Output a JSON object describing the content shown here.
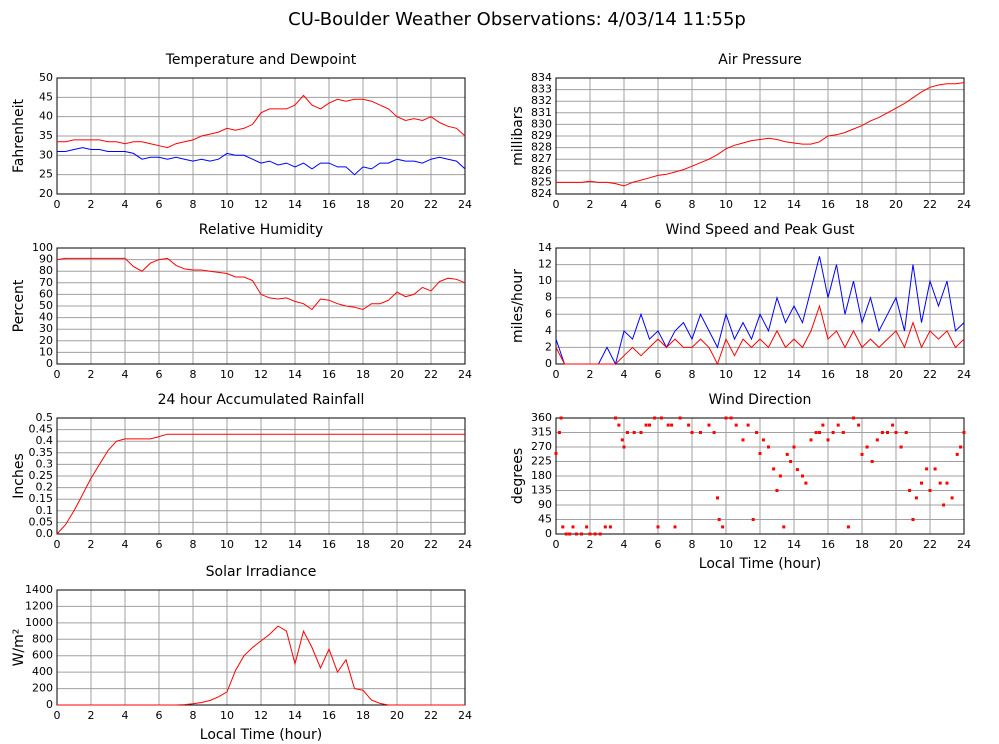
{
  "title": "CU-Boulder Weather Observations: 4/03/14 11:55p",
  "chart_data": [
    {
      "type": "line",
      "title": "Temperature and Dewpoint",
      "ylabel": "Fahrenheit",
      "x": [
        0,
        0.5,
        1,
        1.5,
        2,
        2.5,
        3,
        3.5,
        4,
        4.5,
        5,
        5.5,
        6,
        6.5,
        7,
        7.5,
        8,
        8.5,
        9,
        9.5,
        10,
        10.5,
        11,
        11.5,
        12,
        12.5,
        13,
        13.5,
        14,
        14.5,
        15,
        15.5,
        16,
        16.5,
        17,
        17.5,
        18,
        18.5,
        19,
        19.5,
        20,
        20.5,
        21,
        21.5,
        22,
        22.5,
        23,
        23.5,
        24
      ],
      "series": [
        {
          "color": "#ff0000",
          "values": [
            33.5,
            33.5,
            34,
            34,
            34,
            34,
            33.5,
            33.5,
            33,
            33.5,
            33.5,
            33,
            32.5,
            32,
            33,
            33.5,
            34,
            35,
            35.5,
            36,
            37,
            36.5,
            37,
            38,
            41,
            42,
            42,
            42,
            43,
            45.5,
            43,
            42,
            43.5,
            44.5,
            44,
            44.5,
            44.5,
            44,
            43,
            42,
            40,
            39,
            39.5,
            39,
            40,
            38.5,
            37.5,
            37,
            35
          ]
        },
        {
          "color": "#0000ff",
          "values": [
            31,
            31,
            31.5,
            32,
            31.5,
            31.5,
            31,
            31,
            31,
            30.5,
            29,
            29.5,
            29.5,
            29,
            29.5,
            29,
            28.5,
            29,
            28.5,
            29,
            30.5,
            30,
            30,
            29,
            28,
            28.5,
            27.5,
            28,
            27,
            28,
            26.5,
            28,
            28,
            27,
            27,
            25,
            27,
            26.5,
            28,
            28,
            29,
            28.5,
            28.5,
            28,
            29,
            29.5,
            29,
            28.5,
            26.5
          ]
        }
      ],
      "xlim": [
        0,
        24
      ],
      "xticks": [
        0,
        2,
        4,
        6,
        8,
        10,
        12,
        14,
        16,
        18,
        20,
        22,
        24
      ],
      "ylim": [
        20,
        50
      ],
      "yticks": [
        20,
        25,
        30,
        35,
        40,
        45,
        50
      ],
      "grid": true
    },
    {
      "type": "line",
      "title": "Air Pressure",
      "ylabel": "millibars",
      "x": [
        0,
        0.5,
        1,
        1.5,
        2,
        2.5,
        3,
        3.5,
        4,
        4.5,
        5,
        5.5,
        6,
        6.5,
        7,
        7.5,
        8,
        8.5,
        9,
        9.5,
        10,
        10.5,
        11,
        11.5,
        12,
        12.5,
        13,
        13.5,
        14,
        14.5,
        15,
        15.5,
        16,
        16.5,
        17,
        17.5,
        18,
        18.5,
        19,
        19.5,
        20,
        20.5,
        21,
        21.5,
        22,
        22.5,
        23,
        23.5,
        24
      ],
      "series": [
        {
          "color": "#ff0000",
          "values": [
            825,
            825,
            825,
            825,
            825.1,
            825,
            825,
            824.9,
            824.7,
            825,
            825.2,
            825.4,
            825.6,
            825.7,
            825.9,
            826.1,
            826.4,
            826.7,
            827,
            827.4,
            827.9,
            828.2,
            828.4,
            828.6,
            828.7,
            828.8,
            828.7,
            828.5,
            828.4,
            828.3,
            828.3,
            828.5,
            829,
            829.1,
            829.3,
            829.6,
            829.9,
            830.3,
            830.6,
            831,
            831.4,
            831.8,
            832.3,
            832.8,
            833.2,
            833.4,
            833.5,
            833.5,
            833.6
          ]
        }
      ],
      "xlim": [
        0,
        24
      ],
      "xticks": [
        0,
        2,
        4,
        6,
        8,
        10,
        12,
        14,
        16,
        18,
        20,
        22,
        24
      ],
      "ylim": [
        824,
        834
      ],
      "yticks": [
        824,
        825,
        826,
        827,
        828,
        829,
        830,
        831,
        832,
        833,
        834
      ],
      "grid": true
    },
    {
      "type": "line",
      "title": "Relative Humidity",
      "ylabel": "Percent",
      "x": [
        0,
        0.5,
        1,
        1.5,
        2,
        2.5,
        3,
        3.5,
        4,
        4.5,
        5,
        5.5,
        6,
        6.5,
        7,
        7.5,
        8,
        8.5,
        9,
        9.5,
        10,
        10.5,
        11,
        11.5,
        12,
        12.5,
        13,
        13.5,
        14,
        14.5,
        15,
        15.5,
        16,
        16.5,
        17,
        17.5,
        18,
        18.5,
        19,
        19.5,
        20,
        20.5,
        21,
        21.5,
        22,
        22.5,
        23,
        23.5,
        24
      ],
      "series": [
        {
          "color": "#ff0000",
          "values": [
            90,
            91,
            91,
            91,
            91,
            91,
            91,
            91,
            91,
            84,
            80,
            87,
            90,
            91,
            85,
            82,
            81,
            81,
            80,
            79,
            78,
            75,
            75,
            72,
            60,
            57,
            56,
            57,
            54,
            52,
            47,
            56,
            55,
            52,
            50,
            49,
            47,
            52,
            52,
            55,
            62,
            58,
            60,
            66,
            63,
            71,
            74,
            73,
            70
          ]
        }
      ],
      "xlim": [
        0,
        24
      ],
      "xticks": [
        0,
        2,
        4,
        6,
        8,
        10,
        12,
        14,
        16,
        18,
        20,
        22,
        24
      ],
      "ylim": [
        0,
        100
      ],
      "yticks": [
        0,
        10,
        20,
        30,
        40,
        50,
        60,
        70,
        80,
        90,
        100
      ],
      "grid": true
    },
    {
      "type": "line",
      "title": "Wind Speed and Peak Gust",
      "ylabel": "miles/hour",
      "x": [
        0,
        0.5,
        1,
        1.5,
        2,
        2.5,
        3,
        3.5,
        4,
        4.5,
        5,
        5.5,
        6,
        6.5,
        7,
        7.5,
        8,
        8.5,
        9,
        9.5,
        10,
        10.5,
        11,
        11.5,
        12,
        12.5,
        13,
        13.5,
        14,
        14.5,
        15,
        15.5,
        16,
        16.5,
        17,
        17.5,
        18,
        18.5,
        19,
        19.5,
        20,
        20.5,
        21,
        21.5,
        22,
        22.5,
        23,
        23.5,
        24
      ],
      "series": [
        {
          "color": "#0000ff",
          "values": [
            3,
            0,
            0,
            0,
            0,
            0,
            2,
            0,
            4,
            3,
            6,
            3,
            4,
            2,
            4,
            5,
            3,
            6,
            4,
            2,
            6,
            3,
            5,
            3,
            6,
            4,
            8,
            5,
            7,
            5,
            9,
            13,
            8,
            12,
            6,
            10,
            5,
            8,
            4,
            6,
            8,
            4,
            12,
            5,
            10,
            7,
            10,
            4,
            5
          ]
        },
        {
          "color": "#ff0000",
          "values": [
            2,
            0,
            0,
            0,
            0,
            0,
            0,
            0,
            1,
            2,
            1,
            2,
            3,
            2,
            3,
            2,
            2,
            3,
            2,
            0,
            3,
            1,
            3,
            2,
            3,
            2,
            4,
            2,
            3,
            2,
            4,
            7,
            3,
            4,
            2,
            4,
            2,
            3,
            2,
            3,
            4,
            2,
            5,
            2,
            4,
            3,
            4,
            2,
            3
          ]
        }
      ],
      "xlim": [
        0,
        24
      ],
      "xticks": [
        0,
        2,
        4,
        6,
        8,
        10,
        12,
        14,
        16,
        18,
        20,
        22,
        24
      ],
      "ylim": [
        0,
        14
      ],
      "yticks": [
        0,
        2,
        4,
        6,
        8,
        10,
        12,
        14
      ],
      "grid": true
    },
    {
      "type": "line",
      "title": "24 hour Accumulated Rainfall",
      "ylabel": "Inches",
      "x": [
        0,
        0.5,
        1,
        1.5,
        2,
        2.5,
        3,
        3.5,
        4,
        4.5,
        5,
        5.5,
        6,
        6.5,
        7,
        8,
        10,
        12,
        14,
        16,
        18,
        20,
        22,
        24
      ],
      "series": [
        {
          "color": "#ff0000",
          "values": [
            0,
            0.04,
            0.1,
            0.17,
            0.24,
            0.3,
            0.36,
            0.4,
            0.41,
            0.41,
            0.41,
            0.41,
            0.42,
            0.43,
            0.43,
            0.43,
            0.43,
            0.43,
            0.43,
            0.43,
            0.43,
            0.43,
            0.43,
            0.43
          ]
        }
      ],
      "xlim": [
        0,
        24
      ],
      "xticks": [
        0,
        2,
        4,
        6,
        8,
        10,
        12,
        14,
        16,
        18,
        20,
        22,
        24
      ],
      "ylim": [
        0,
        0.5
      ],
      "yticks": [
        {
          "value": 0,
          "label": "0.0"
        },
        0.05,
        0.1,
        0.15,
        0.2,
        0.25,
        0.3,
        0.35,
        0.4,
        0.45,
        0.5
      ],
      "grid": true
    },
    {
      "type": "scatter",
      "title": "Wind Direction",
      "ylabel": "degrees",
      "xlabel": "Local Time (hour)",
      "x": [
        0,
        0.2,
        0.3,
        0.4,
        0.6,
        0.8,
        1,
        1.2,
        1.5,
        1.8,
        2,
        2.3,
        2.6,
        2.9,
        3.2,
        3.5,
        3.7,
        3.9,
        4,
        4.2,
        4.6,
        5,
        5.3,
        5.5,
        5.8,
        6,
        6.2,
        6.6,
        6.8,
        7,
        7.3,
        7.8,
        8,
        8.5,
        9,
        9.3,
        9.5,
        9.6,
        9.8,
        10,
        10.3,
        10.6,
        11,
        11.3,
        11.6,
        11.8,
        12,
        12.2,
        12.5,
        12.8,
        13,
        13.2,
        13.4,
        13.6,
        13.8,
        14,
        14.2,
        14.5,
        14.7,
        15,
        15.3,
        15.5,
        15.7,
        16,
        16.3,
        16.6,
        16.9,
        17.2,
        17.5,
        17.8,
        18,
        18.3,
        18.6,
        18.9,
        19.2,
        19.5,
        19.8,
        20,
        20.3,
        20.6,
        20.8,
        21,
        21.2,
        21.5,
        21.8,
        22,
        22.3,
        22.6,
        22.8,
        23,
        23.3,
        23.6,
        23.8,
        24
      ],
      "series": [
        {
          "color": "#ff0000",
          "values": [
            250,
            315,
            360,
            22,
            0,
            0,
            22,
            0,
            0,
            22,
            0,
            0,
            0,
            22,
            22,
            360,
            338,
            292,
            270,
            315,
            315,
            315,
            338,
            338,
            360,
            22,
            360,
            338,
            338,
            22,
            360,
            338,
            315,
            315,
            338,
            315,
            112,
            45,
            22,
            360,
            360,
            338,
            292,
            338,
            45,
            315,
            250,
            292,
            270,
            202,
            135,
            180,
            22,
            247,
            225,
            270,
            200,
            180,
            158,
            292,
            315,
            315,
            338,
            292,
            315,
            338,
            315,
            22,
            360,
            338,
            247,
            270,
            225,
            292,
            315,
            315,
            338,
            315,
            270,
            315,
            135,
            45,
            112,
            158,
            202,
            135,
            202,
            158,
            90,
            158,
            112,
            247,
            270,
            315
          ]
        }
      ],
      "xlim": [
        0,
        24
      ],
      "xticks": [
        0,
        2,
        4,
        6,
        8,
        10,
        12,
        14,
        16,
        18,
        20,
        22,
        24
      ],
      "ylim": [
        0,
        360
      ],
      "yticks": [
        0,
        45,
        90,
        135,
        180,
        225,
        270,
        315,
        360
      ],
      "grid": true
    },
    {
      "type": "line",
      "title": "Solar Irradiance",
      "ylabel": "W/m²",
      "xlabel": "Local Time (hour)",
      "x": [
        0,
        1,
        2,
        3,
        4,
        5,
        6,
        7,
        7.5,
        8,
        8.5,
        9,
        9.5,
        10,
        10.5,
        11,
        11.5,
        12,
        12.5,
        13,
        13.5,
        14,
        14.5,
        15,
        15.5,
        16,
        16.5,
        17,
        17.5,
        18,
        18.5,
        19,
        19.5,
        20,
        21,
        22,
        23,
        24
      ],
      "series": [
        {
          "color": "#ff0000",
          "values": [
            0,
            0,
            0,
            0,
            0,
            0,
            0,
            0,
            5,
            15,
            30,
            55,
            100,
            160,
            420,
            600,
            700,
            780,
            860,
            960,
            900,
            500,
            900,
            700,
            450,
            680,
            400,
            550,
            200,
            180,
            60,
            20,
            0,
            0,
            0,
            0,
            0,
            0
          ]
        }
      ],
      "xlim": [
        0,
        24
      ],
      "xticks": [
        0,
        2,
        4,
        6,
        8,
        10,
        12,
        14,
        16,
        18,
        20,
        22,
        24
      ],
      "ylim": [
        0,
        1400
      ],
      "yticks": [
        0,
        200,
        400,
        600,
        800,
        1000,
        1200,
        1400
      ],
      "grid": true
    }
  ]
}
